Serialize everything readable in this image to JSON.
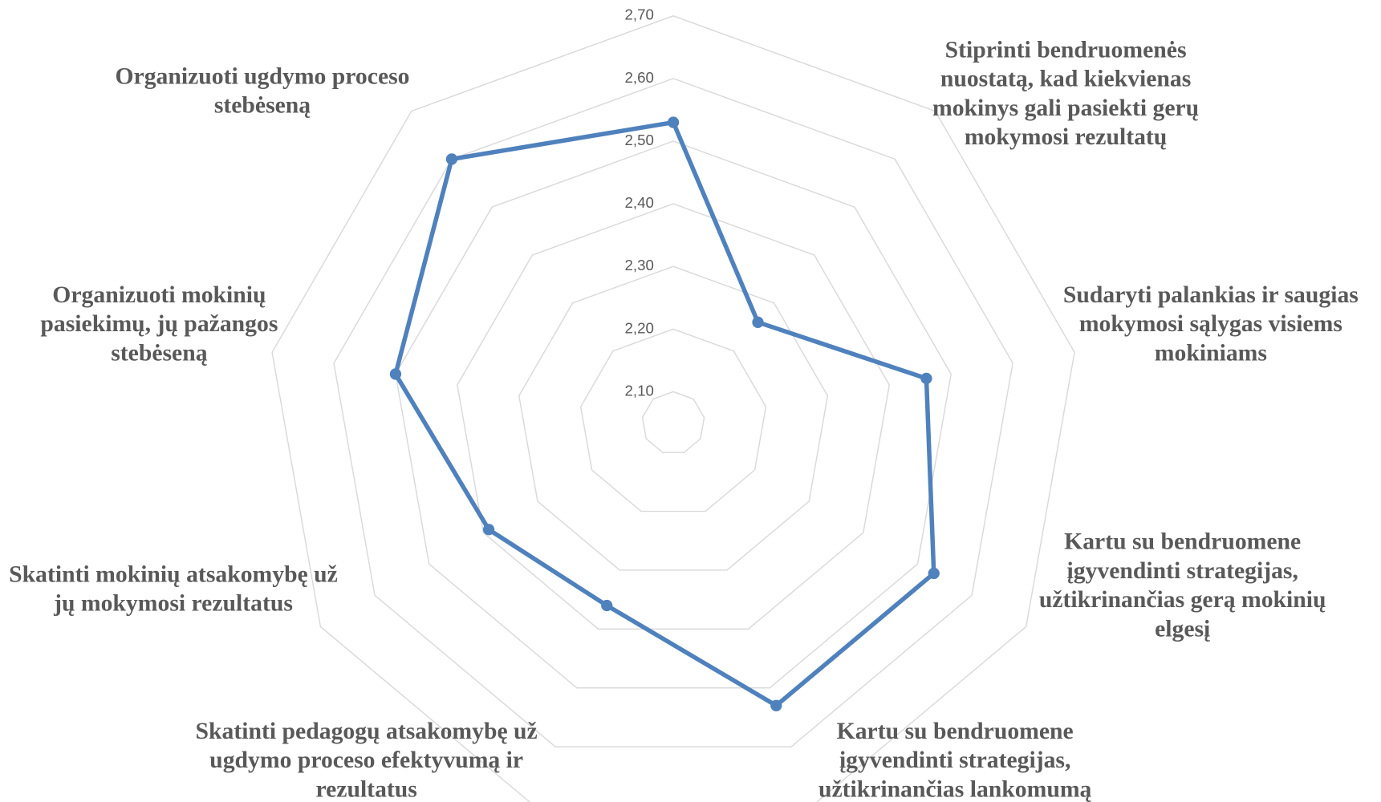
{
  "chart_data": {
    "type": "radar",
    "categories": [
      null,
      "Stiprinti bendruomenės nuostatą, kad kiekvienas mokinys gali pasiekti gerų mokymosi rezultatų",
      "Sudaryti palankias ir saugias mokymosi sąlygas visiems mokiniams",
      "Kartu su bendruomene įgyvendinti strategijas, užtikrinančias gerą mokinių elgesį",
      "Kartu su bendruomene įgyvendinti strategijas, užtikrinančias lankomumą",
      "Skatinti pedagogų atsakomybę už ugdymo proceso efektyvumą ir rezultatus",
      "Skatinti mokinių atsakomybę už jų mokymosi rezultatus",
      "Organizuoti mokinių pasiekimų, jų pažangos stebėseną",
      "Organizuoti ugdymo proceso stebėseną"
    ],
    "series": [
      {
        "color": "#4f81bd",
        "values": [
          2.53,
          2.26,
          2.46,
          2.53,
          2.53,
          2.36,
          2.39,
          2.5,
          2.6
        ]
      }
    ],
    "ylim": [
      2.05,
      2.7
    ],
    "yticks": [
      {
        "value": 2.1,
        "label": "2,10"
      },
      {
        "value": 2.2,
        "label": "2,20"
      },
      {
        "value": 2.3,
        "label": "2,30"
      },
      {
        "value": 2.4,
        "label": "2,40"
      },
      {
        "value": 2.5,
        "label": "2,50"
      },
      {
        "value": 2.6,
        "label": "2,60"
      },
      {
        "value": 2.7,
        "label": "2,70"
      }
    ],
    "grid": true
  }
}
